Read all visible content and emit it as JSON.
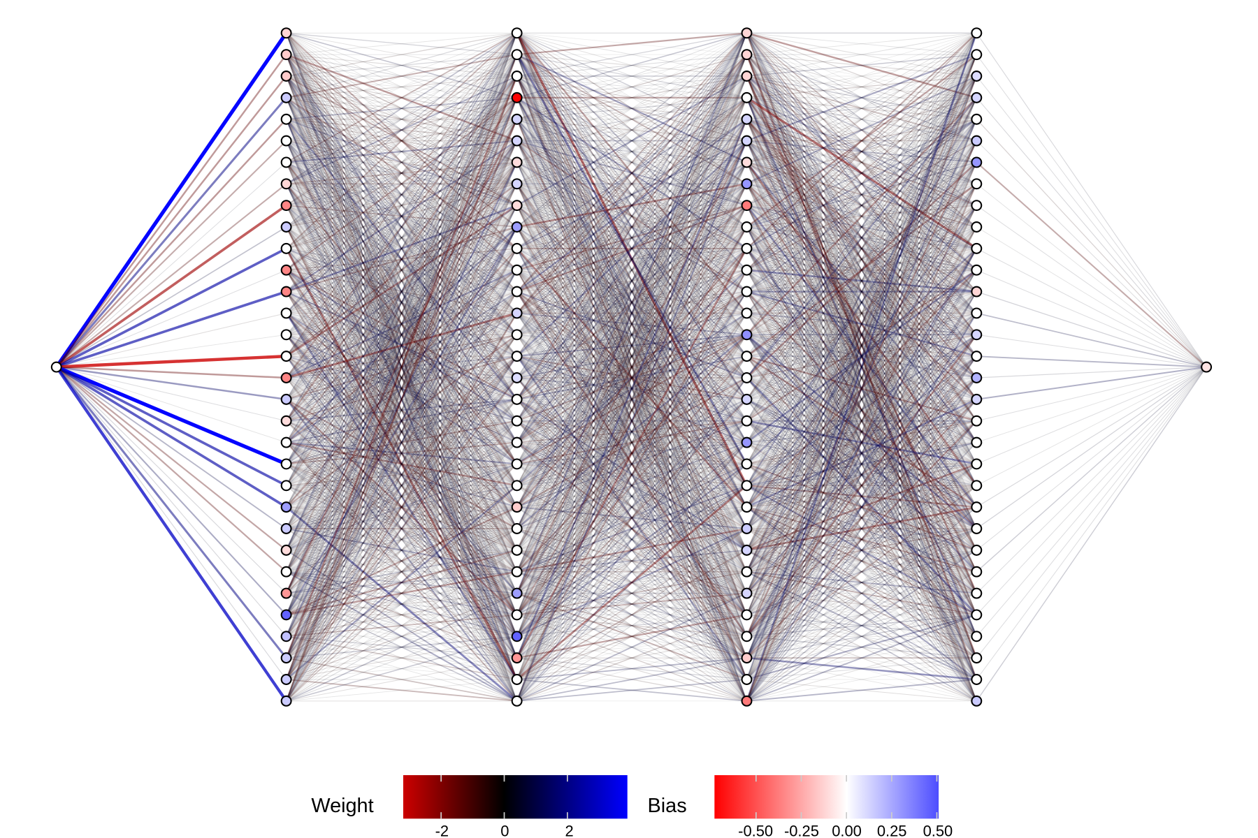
{
  "network": {
    "layer_sizes": [
      1,
      32,
      32,
      32,
      32,
      1
    ],
    "biases": {
      "input": [
        0
      ],
      "hidden1": [
        -0.12,
        -0.15,
        -0.15,
        0.15,
        0,
        0,
        0,
        -0.12,
        -0.35,
        0.15,
        0,
        -0.35,
        -0.35,
        0,
        0,
        0,
        -0.35,
        0.15,
        -0.1,
        0,
        0,
        0,
        0.28,
        0.15,
        -0.1,
        0,
        -0.3,
        0.45,
        0.18,
        0.15,
        0.15,
        0.15
      ],
      "hidden2": [
        0,
        0,
        0,
        -0.72,
        0.12,
        0.12,
        -0.1,
        0.12,
        -0.1,
        0.28,
        0,
        0,
        0,
        0.12,
        0,
        0,
        0.1,
        0,
        0,
        0,
        0,
        0,
        -0.15,
        0,
        0,
        0,
        0.28,
        0,
        0.45,
        -0.3,
        0,
        0
      ],
      "hidden3": [
        -0.12,
        -0.12,
        -0.12,
        0,
        0.12,
        0.12,
        -0.1,
        0.3,
        -0.38,
        0,
        0,
        0,
        0,
        0,
        0.32,
        0,
        0,
        0.12,
        0,
        0.3,
        0,
        0,
        0,
        0.15,
        0.12,
        0,
        0.12,
        0,
        0,
        -0.15,
        0,
        -0.38
      ],
      "hidden4": [
        0,
        0,
        0.1,
        0.12,
        0,
        0.15,
        0.3,
        0,
        0,
        0,
        0,
        0,
        -0.12,
        0,
        0.12,
        0,
        0.22,
        0.12,
        0,
        0,
        0,
        0,
        0,
        0,
        0,
        0,
        0,
        0,
        0,
        0,
        0,
        0.15
      ],
      "output": [
        -0.08
      ]
    },
    "input_weights": [
      3.9,
      -1.5,
      -1.5,
      2.0,
      -1.5,
      -1.2,
      0.3,
      -1.2,
      -2.5,
      0.8,
      2.5,
      0.3,
      2.5,
      -0.3,
      0.2,
      -3.2,
      -1.5,
      1.5,
      0.3,
      -0.2,
      3.9,
      2.5,
      2.5,
      1.0,
      -1.3,
      -1.3,
      0.4,
      1.2,
      0.4,
      2.0,
      0.4,
      3.0
    ],
    "output_weights": [
      0.4,
      0.3,
      0.3,
      0.4,
      -0.5,
      0.3,
      -1.2,
      0.2,
      0.3,
      0.2,
      0.3,
      0.3,
      0.5,
      0.9,
      0.3,
      1.0,
      0.4,
      1.1,
      0.3,
      0.2,
      0.3,
      0.2,
      0.4,
      0.5,
      0.3,
      0.6,
      0.3,
      0.3,
      0.3,
      0.3,
      0.3,
      0.6
    ]
  },
  "legend": {
    "weight": {
      "title": "Weight",
      "range": [
        -3.2,
        3.9
      ],
      "ticks": [
        -2,
        0,
        2
      ],
      "tick_labels": [
        "-2",
        "0",
        "2"
      ],
      "colors": {
        "negative": "#cc0000",
        "zero": "#000000",
        "positive": "#0000ff"
      }
    },
    "bias": {
      "title": "Bias",
      "range": [
        -0.73,
        0.51
      ],
      "ticks": [
        -0.5,
        -0.25,
        0,
        0.25,
        0.5
      ],
      "tick_labels": [
        "-0.50",
        "-0.25",
        "0.00",
        "0.25",
        "0.50"
      ],
      "colors": {
        "negative": "#ff0000",
        "zero": "#ffffff",
        "positive": "#4d4dff"
      }
    }
  }
}
